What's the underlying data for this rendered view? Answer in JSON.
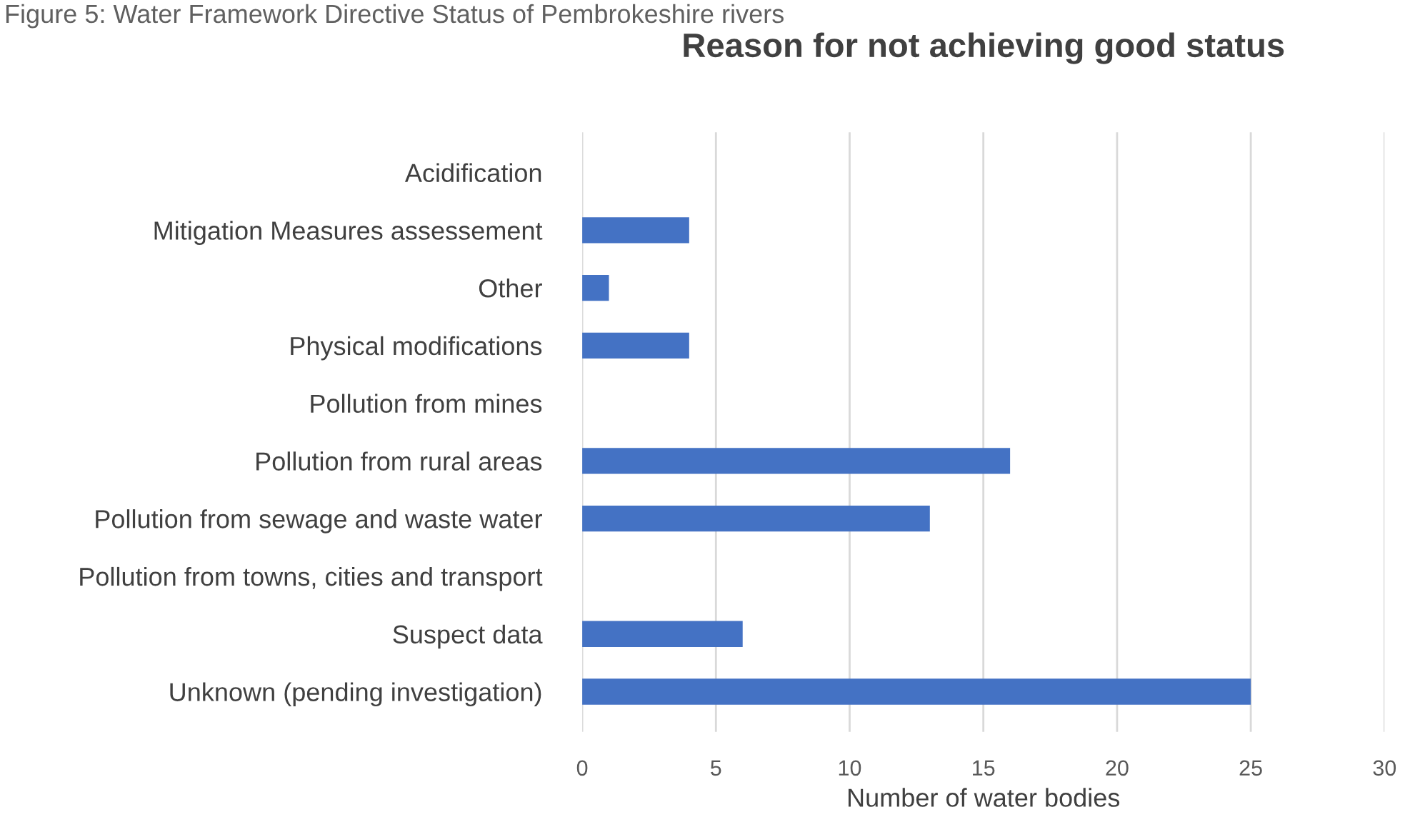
{
  "chart_data": {
    "type": "bar",
    "orientation": "horizontal",
    "title": "Reason for not achieving good status",
    "xlabel": "Number of water bodies",
    "annotations": [
      "Figure 5: Water Framework Directive Status of Pembrokeshire rivers"
    ],
    "categories": [
      "Acidification",
      "Mitigation Measures assessement",
      "Other",
      "Physical modifications",
      "Pollution from mines",
      "Pollution from rural areas",
      "Pollution from sewage and waste water",
      "Pollution from towns, cities and transport",
      "Suspect data",
      "Unknown (pending investigation)"
    ],
    "values": [
      0,
      4,
      1,
      4,
      0,
      16,
      13,
      0,
      6,
      25
    ],
    "color": "#4472c4",
    "xlim": [
      0,
      30
    ],
    "xticks": [
      0,
      5,
      10,
      15,
      20,
      25,
      30
    ],
    "grid": "x"
  }
}
